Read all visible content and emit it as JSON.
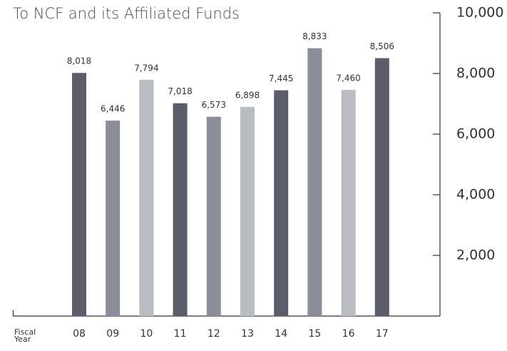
{
  "chart_data": {
    "type": "bar",
    "title": "To NCF and its Affiliated Funds",
    "x_label": "Fiscal Year",
    "categories": [
      "08",
      "09",
      "10",
      "11",
      "12",
      "13",
      "14",
      "15",
      "16",
      "17"
    ],
    "values": [
      8018,
      6446,
      7794,
      7018,
      6573,
      6898,
      7445,
      8833,
      7460,
      8506
    ],
    "value_labels": [
      "8,018",
      "6,446",
      "7,794",
      "7,018",
      "6,573",
      "6,898",
      "7,445",
      "8,833",
      "7,460",
      "8,506"
    ],
    "colors": [
      "#5b5d6b",
      "#8b8d9a",
      "#b9bdc2",
      "#5b5d6b",
      "#8b8d9a",
      "#b9bdc2",
      "#5b5d6b",
      "#8b8d9a",
      "#b9bdc2",
      "#5b5d6b"
    ],
    "ylim": [
      0,
      10000
    ],
    "yticks": [
      {
        "value": 2000,
        "label": "2,000"
      },
      {
        "value": 4000,
        "label": "4,000"
      },
      {
        "value": 6000,
        "label": "6,000"
      },
      {
        "value": 8000,
        "label": "8,000"
      },
      {
        "value": 10000,
        "label": "10,000"
      }
    ],
    "y_axis_side": "right"
  }
}
